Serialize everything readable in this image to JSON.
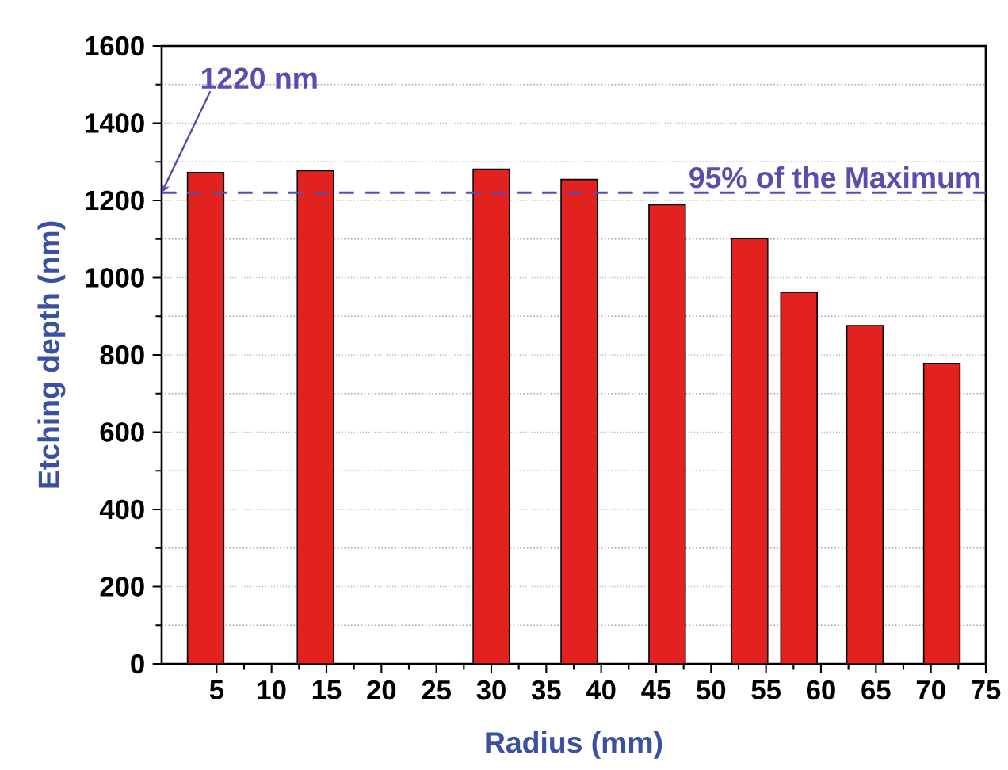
{
  "chart_data": {
    "type": "bar",
    "xlabel": "Radius (mm)",
    "ylabel": "Etching depth (nm)",
    "x": [
      4,
      14,
      30,
      38,
      46,
      53.5,
      58,
      64,
      71
    ],
    "values": [
      1272,
      1277,
      1281,
      1254,
      1189,
      1101,
      962,
      876,
      778
    ],
    "color": "#e3221f",
    "xlim": [
      0,
      75
    ],
    "xticks": [
      5,
      10,
      15,
      20,
      25,
      30,
      35,
      40,
      45,
      50,
      55,
      60,
      65,
      70,
      75
    ],
    "ylim": [
      0,
      1600
    ],
    "yticks": [
      0,
      200,
      400,
      600,
      800,
      1000,
      1200,
      1400,
      1600
    ],
    "grid": "y",
    "ref_lines": [
      {
        "axis": "y",
        "value": 1220,
        "label": "95% of the Maximum",
        "color": "#5b4db0",
        "line_style": "dashed"
      }
    ],
    "annotations": [
      {
        "text": "1220 nm",
        "x": 0,
        "y": 1220
      }
    ]
  }
}
